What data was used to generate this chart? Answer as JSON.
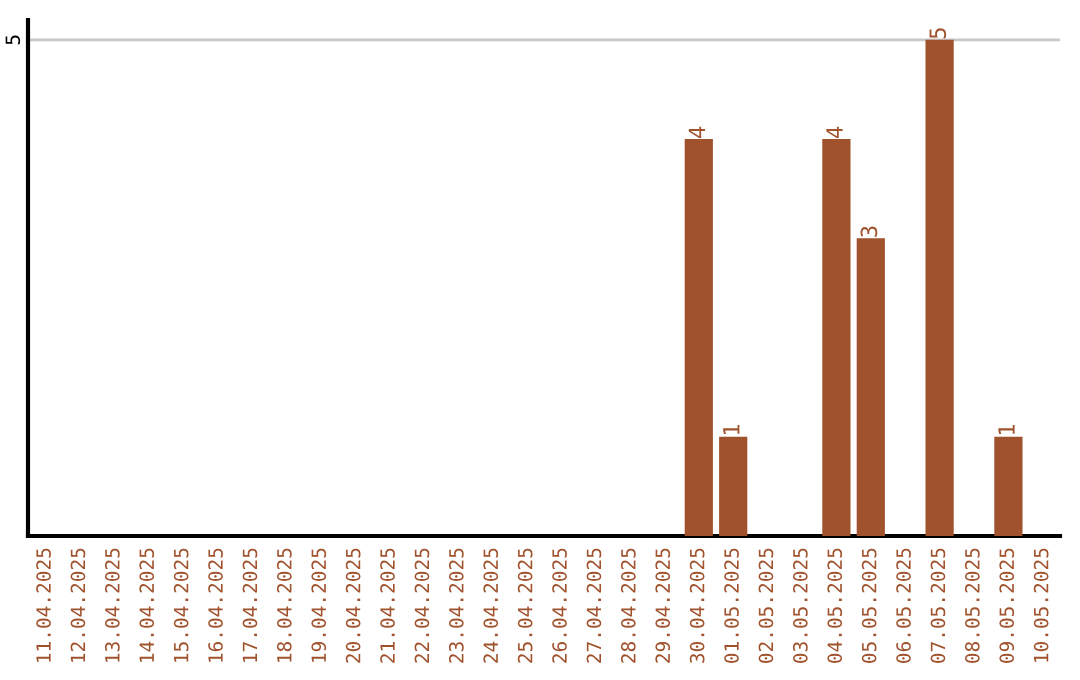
{
  "chart_data": {
    "type": "bar",
    "categories": [
      "11.04.2025",
      "12.04.2025",
      "13.04.2025",
      "14.04.2025",
      "15.04.2025",
      "16.04.2025",
      "17.04.2025",
      "18.04.2025",
      "19.04.2025",
      "20.04.2025",
      "21.04.2025",
      "22.04.2025",
      "23.04.2025",
      "24.04.2025",
      "25.04.2025",
      "26.04.2025",
      "27.04.2025",
      "28.04.2025",
      "29.04.2025",
      "30.04.2025",
      "01.05.2025",
      "02.05.2025",
      "03.05.2025",
      "04.05.2025",
      "05.05.2025",
      "06.05.2025",
      "07.05.2025",
      "08.05.2025",
      "09.05.2025",
      "10.05.2025"
    ],
    "values": [
      null,
      null,
      null,
      null,
      null,
      null,
      null,
      null,
      null,
      null,
      null,
      null,
      null,
      null,
      null,
      null,
      null,
      null,
      null,
      4,
      1,
      null,
      null,
      4,
      3,
      null,
      5,
      null,
      1,
      null
    ],
    "data_labels": true,
    "ylim": [
      0,
      5.2
    ],
    "color": "#a0522d",
    "ref_lines": [
      {
        "axis": "y",
        "value": 5,
        "label": "5",
        "color": "#c8c8c8"
      }
    ]
  }
}
